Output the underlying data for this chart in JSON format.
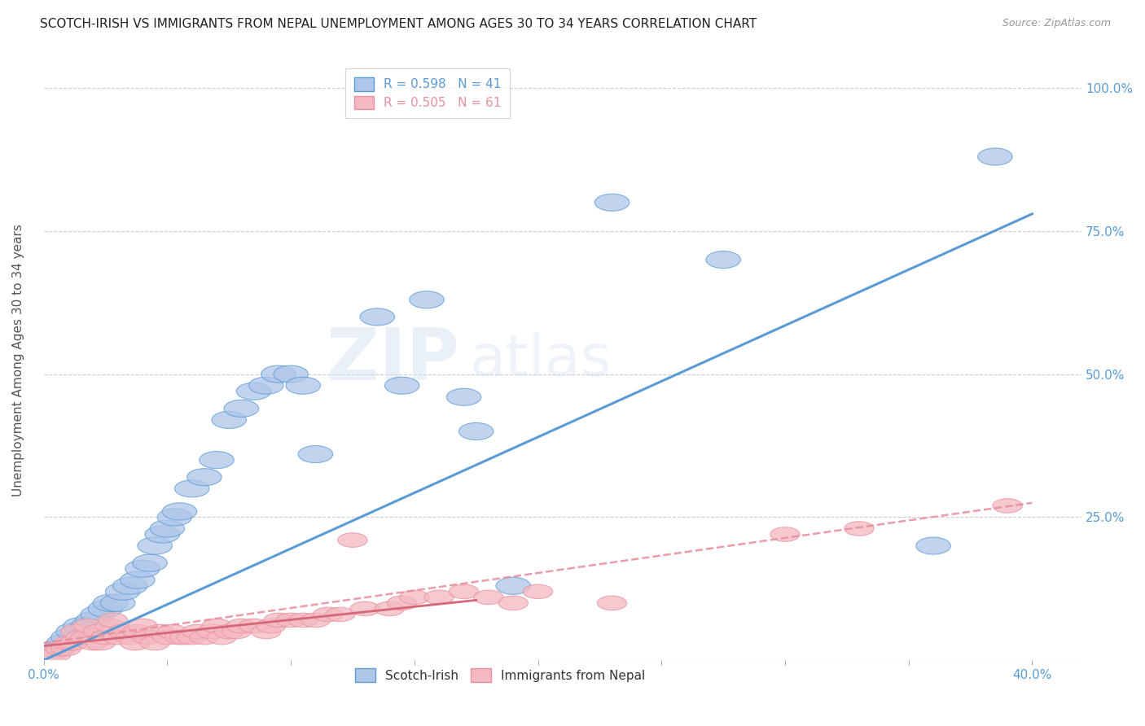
{
  "title": "SCOTCH-IRISH VS IMMIGRANTS FROM NEPAL UNEMPLOYMENT AMONG AGES 30 TO 34 YEARS CORRELATION CHART",
  "source": "Source: ZipAtlas.com",
  "ylabel": "Unemployment Among Ages 30 to 34 years",
  "watermark_zip": "ZIP",
  "watermark_atlas": "atlas",
  "xlim": [
    0.0,
    0.42
  ],
  "ylim": [
    0.0,
    1.05
  ],
  "xticks": [
    0.0,
    0.05,
    0.1,
    0.15,
    0.2,
    0.25,
    0.3,
    0.35,
    0.4
  ],
  "xticklabels": [
    "0.0%",
    "",
    "",
    "",
    "",
    "",
    "",
    "",
    "40.0%"
  ],
  "ytick_positions": [
    0.0,
    0.25,
    0.5,
    0.75,
    1.0
  ],
  "yticklabels": [
    "",
    "25.0%",
    "50.0%",
    "75.0%",
    "100.0%"
  ],
  "blue_scatter": [
    [
      0.005,
      0.02
    ],
    [
      0.008,
      0.03
    ],
    [
      0.01,
      0.04
    ],
    [
      0.012,
      0.05
    ],
    [
      0.015,
      0.06
    ],
    [
      0.018,
      0.06
    ],
    [
      0.02,
      0.07
    ],
    [
      0.022,
      0.08
    ],
    [
      0.025,
      0.09
    ],
    [
      0.027,
      0.1
    ],
    [
      0.03,
      0.1
    ],
    [
      0.032,
      0.12
    ],
    [
      0.035,
      0.13
    ],
    [
      0.038,
      0.14
    ],
    [
      0.04,
      0.16
    ],
    [
      0.043,
      0.17
    ],
    [
      0.045,
      0.2
    ],
    [
      0.048,
      0.22
    ],
    [
      0.05,
      0.23
    ],
    [
      0.053,
      0.25
    ],
    [
      0.055,
      0.26
    ],
    [
      0.06,
      0.3
    ],
    [
      0.065,
      0.32
    ],
    [
      0.07,
      0.35
    ],
    [
      0.075,
      0.42
    ],
    [
      0.08,
      0.44
    ],
    [
      0.085,
      0.47
    ],
    [
      0.09,
      0.48
    ],
    [
      0.095,
      0.5
    ],
    [
      0.1,
      0.5
    ],
    [
      0.105,
      0.48
    ],
    [
      0.11,
      0.36
    ],
    [
      0.135,
      0.6
    ],
    [
      0.145,
      0.48
    ],
    [
      0.155,
      0.63
    ],
    [
      0.17,
      0.46
    ],
    [
      0.175,
      0.4
    ],
    [
      0.19,
      0.13
    ],
    [
      0.23,
      0.8
    ],
    [
      0.275,
      0.7
    ],
    [
      0.36,
      0.2
    ],
    [
      0.385,
      0.88
    ]
  ],
  "pink_scatter": [
    [
      0.003,
      0.01
    ],
    [
      0.005,
      0.01
    ],
    [
      0.007,
      0.02
    ],
    [
      0.009,
      0.02
    ],
    [
      0.01,
      0.03
    ],
    [
      0.012,
      0.03
    ],
    [
      0.013,
      0.05
    ],
    [
      0.015,
      0.04
    ],
    [
      0.017,
      0.04
    ],
    [
      0.018,
      0.06
    ],
    [
      0.02,
      0.03
    ],
    [
      0.022,
      0.05
    ],
    [
      0.023,
      0.03
    ],
    [
      0.025,
      0.04
    ],
    [
      0.027,
      0.06
    ],
    [
      0.028,
      0.07
    ],
    [
      0.03,
      0.04
    ],
    [
      0.032,
      0.05
    ],
    [
      0.035,
      0.04
    ],
    [
      0.037,
      0.03
    ],
    [
      0.038,
      0.05
    ],
    [
      0.04,
      0.06
    ],
    [
      0.042,
      0.04
    ],
    [
      0.045,
      0.03
    ],
    [
      0.047,
      0.05
    ],
    [
      0.05,
      0.04
    ],
    [
      0.052,
      0.05
    ],
    [
      0.055,
      0.04
    ],
    [
      0.057,
      0.04
    ],
    [
      0.06,
      0.04
    ],
    [
      0.062,
      0.05
    ],
    [
      0.065,
      0.04
    ],
    [
      0.068,
      0.05
    ],
    [
      0.07,
      0.06
    ],
    [
      0.072,
      0.04
    ],
    [
      0.075,
      0.05
    ],
    [
      0.078,
      0.05
    ],
    [
      0.08,
      0.06
    ],
    [
      0.085,
      0.06
    ],
    [
      0.09,
      0.05
    ],
    [
      0.092,
      0.06
    ],
    [
      0.095,
      0.07
    ],
    [
      0.1,
      0.07
    ],
    [
      0.105,
      0.07
    ],
    [
      0.11,
      0.07
    ],
    [
      0.115,
      0.08
    ],
    [
      0.12,
      0.08
    ],
    [
      0.125,
      0.21
    ],
    [
      0.13,
      0.09
    ],
    [
      0.14,
      0.09
    ],
    [
      0.145,
      0.1
    ],
    [
      0.15,
      0.11
    ],
    [
      0.16,
      0.11
    ],
    [
      0.17,
      0.12
    ],
    [
      0.18,
      0.11
    ],
    [
      0.19,
      0.1
    ],
    [
      0.2,
      0.12
    ],
    [
      0.23,
      0.1
    ],
    [
      0.3,
      0.22
    ],
    [
      0.33,
      0.23
    ],
    [
      0.39,
      0.27
    ]
  ],
  "blue_line": [
    0.0,
    0.0,
    0.4,
    0.78
  ],
  "pink_solid_line": [
    0.0,
    0.025,
    0.175,
    0.105
  ],
  "pink_dashed_line": [
    0.0,
    0.03,
    0.4,
    0.275
  ],
  "blue_color": "#aec6e8",
  "pink_color": "#f4b8c1",
  "blue_line_color": "#5b9bd5",
  "pink_line_color": "#e8919f",
  "pink_solid_color": "#d46878",
  "background_color": "#ffffff",
  "grid_color": "#cccccc",
  "title_color": "#222222",
  "right_tick_color": "#5b9bd5"
}
